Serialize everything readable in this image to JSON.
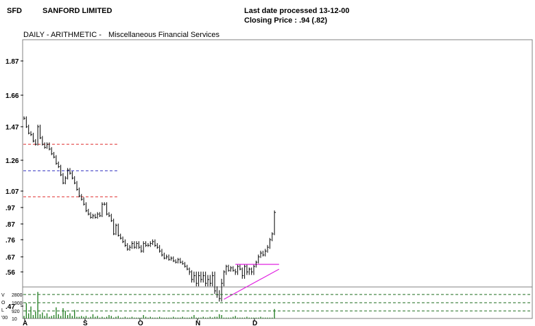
{
  "header": {
    "ticker": "SFD",
    "company": "SANFORD LIMITED",
    "last_date": "Last date processed 13-12-00",
    "closing_price": "Closing Price : .94  (.82)"
  },
  "chart_data": {
    "type": "bar",
    "subtitle_left": "DAILY - ARITHMETIC -",
    "subtitle_right": "Miscellaneous Financial Services",
    "price_axis": {
      "ticks": [
        0.47,
        0.56,
        0.67,
        0.76,
        0.87,
        0.97,
        1.07,
        1.26,
        1.47,
        1.66,
        1.87
      ],
      "labels": [
        ".47",
        ".56",
        ".67",
        ".76",
        ".87",
        ".97",
        "1.07",
        "1.26",
        "1.47",
        "1.66",
        "1.87"
      ]
    },
    "month_labels": [
      "A",
      "S",
      "O",
      "N",
      "D"
    ],
    "volume_axis": {
      "side_letters": [
        "V",
        "O",
        "L",
        "'00"
      ],
      "ticks": [
        10,
        920,
        1900,
        2800
      ],
      "labels": [
        "10",
        "920",
        "1900",
        "2800"
      ]
    },
    "reference_lines": [
      {
        "price": 1.36,
        "color": "#e03030"
      },
      {
        "price": 1.195,
        "color": "#3030c0"
      },
      {
        "price": 1.035,
        "color": "#e03030"
      }
    ],
    "trendlines": [
      {
        "x1": 92,
        "y1": 0.615,
        "x2": 111,
        "y2": 0.615,
        "color": "#e020e0"
      },
      {
        "x1": 87,
        "y1": 0.488,
        "x2": 111,
        "y2": 0.58,
        "color": "#e020e0"
      }
    ],
    "close": [
      1.52,
      1.47,
      1.43,
      1.42,
      1.38,
      1.36,
      1.47,
      1.4,
      1.36,
      1.34,
      1.36,
      1.33,
      1.3,
      1.28,
      1.24,
      1.22,
      1.17,
      1.12,
      1.15,
      1.2,
      1.18,
      1.15,
      1.12,
      1.08,
      1.04,
      1.02,
      0.99,
      0.95,
      0.93,
      0.91,
      0.92,
      0.91,
      0.93,
      0.92,
      0.99,
      0.99,
      0.93,
      0.92,
      0.89,
      0.8,
      0.86,
      0.79,
      0.77,
      0.75,
      0.73,
      0.71,
      0.72,
      0.74,
      0.72,
      0.74,
      0.72,
      0.7,
      0.74,
      0.73,
      0.73,
      0.74,
      0.75,
      0.73,
      0.72,
      0.7,
      0.68,
      0.66,
      0.67,
      0.65,
      0.66,
      0.64,
      0.63,
      0.65,
      0.63,
      0.62,
      0.6,
      0.58,
      0.56,
      0.54,
      0.55,
      0.53,
      0.55,
      0.54,
      0.55,
      0.53,
      0.54,
      0.53,
      0.55,
      0.51,
      0.5,
      0.49,
      0.53,
      0.56,
      0.6,
      0.57,
      0.59,
      0.57,
      0.56,
      0.6,
      0.58,
      0.55,
      0.6,
      0.56,
      0.58,
      0.56,
      0.6,
      0.63,
      0.67,
      0.69,
      0.68,
      0.7,
      0.72,
      0.76,
      0.8,
      0.94
    ],
    "volume": [
      300,
      1800,
      600,
      1400,
      400,
      800,
      3100,
      500,
      700,
      300,
      600,
      200,
      300,
      400,
      1300,
      500,
      300,
      1200,
      900,
      400,
      600,
      300,
      1000,
      200,
      200,
      300,
      200,
      300,
      100,
      200,
      500,
      200,
      300,
      100,
      200,
      100,
      200,
      400,
      300,
      100,
      200,
      300,
      100,
      100,
      200,
      100,
      100,
      200,
      100,
      100,
      100,
      100,
      400,
      200,
      100,
      200,
      100,
      100,
      100,
      200,
      100,
      100,
      100,
      100,
      100,
      200,
      100,
      100,
      100,
      200,
      100,
      100,
      100,
      200,
      400,
      100,
      100,
      100,
      200,
      100,
      100,
      200,
      100,
      200,
      200,
      500,
      400,
      100,
      100,
      100,
      100,
      200,
      300,
      100,
      100,
      100,
      100,
      200,
      100,
      100,
      100,
      100,
      100,
      200,
      100,
      100,
      100,
      100,
      100,
      1100
    ]
  }
}
